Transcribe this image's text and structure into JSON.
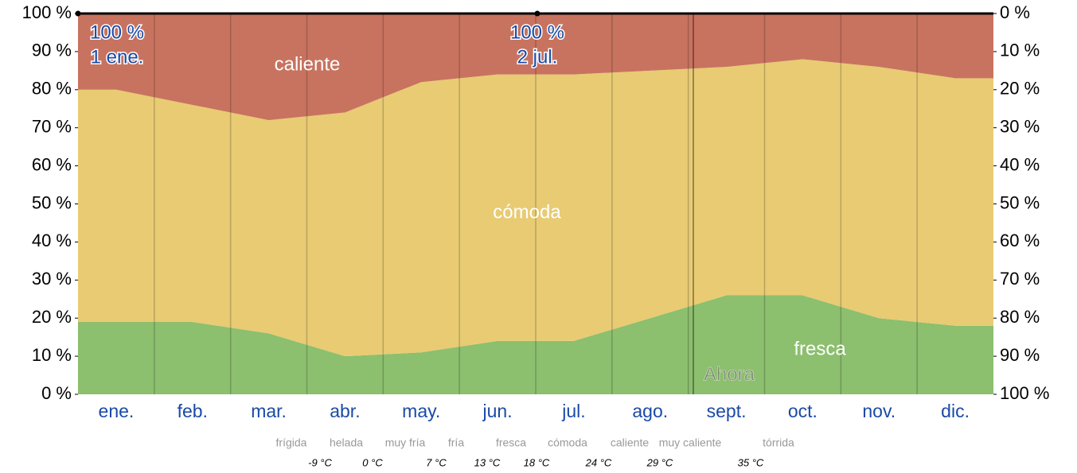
{
  "chart_data": {
    "type": "stacked-area",
    "categories": [
      "ene.",
      "feb.",
      "mar.",
      "abr.",
      "may.",
      "jun.",
      "jul.",
      "ago.",
      "sept.",
      "oct.",
      "nov.",
      "dic."
    ],
    "series": [
      {
        "name": "fresca",
        "color": "#8cbf6e",
        "values": [
          19,
          19,
          16,
          10,
          11,
          14,
          14,
          20,
          26,
          26,
          20,
          18
        ]
      },
      {
        "name": "cómoda",
        "color": "#e8cb73",
        "values": [
          61,
          57,
          56,
          64,
          71,
          70,
          70,
          65,
          60,
          62,
          66,
          65
        ]
      },
      {
        "name": "caliente",
        "color": "#c8735f",
        "values": [
          20,
          24,
          28,
          26,
          18,
          16,
          16,
          15,
          14,
          12,
          14,
          17
        ]
      }
    ],
    "ylim": [
      0,
      100
    ],
    "yticks": [
      {
        "value": 0,
        "label": "0 %"
      },
      {
        "value": 10,
        "label": "10 %"
      },
      {
        "value": 20,
        "label": "20 %"
      },
      {
        "value": 30,
        "label": "30 %"
      },
      {
        "value": 40,
        "label": "40 %"
      },
      {
        "value": 50,
        "label": "50 %"
      },
      {
        "value": 60,
        "label": "60 %"
      },
      {
        "value": 70,
        "label": "70 %"
      },
      {
        "value": 80,
        "label": "80 %"
      },
      {
        "value": 90,
        "label": "90 %"
      },
      {
        "value": 100,
        "label": "100 %"
      }
    ],
    "y2lim": [
      100,
      0
    ],
    "y2ticks": [
      {
        "value": 0,
        "label": "0 %"
      },
      {
        "value": 10,
        "label": "10 %"
      },
      {
        "value": 20,
        "label": "20 %"
      },
      {
        "value": 30,
        "label": "30 %"
      },
      {
        "value": 40,
        "label": "40 %"
      },
      {
        "value": 50,
        "label": "50 %"
      },
      {
        "value": 60,
        "label": "60 %"
      },
      {
        "value": 70,
        "label": "70 %"
      },
      {
        "value": 80,
        "label": "80 %"
      },
      {
        "value": 90,
        "label": "90 %"
      },
      {
        "value": 100,
        "label": "100 %"
      }
    ],
    "annotations": [
      {
        "value": "100 %",
        "date": "1 ene."
      },
      {
        "value": "100 %",
        "date": "2 jul."
      }
    ],
    "now_label": "Ahora",
    "temperature_bands": [
      "frígida",
      "helada",
      "muy fría",
      "fría",
      "fresca",
      "cómoda",
      "caliente",
      "muy caliente",
      "tórrida"
    ],
    "temperature_thresholds": [
      "-9 °C",
      "0 °C",
      "7 °C",
      "13 °C",
      "18 °C",
      "24 °C",
      "29 °C",
      "35 °C"
    ]
  }
}
